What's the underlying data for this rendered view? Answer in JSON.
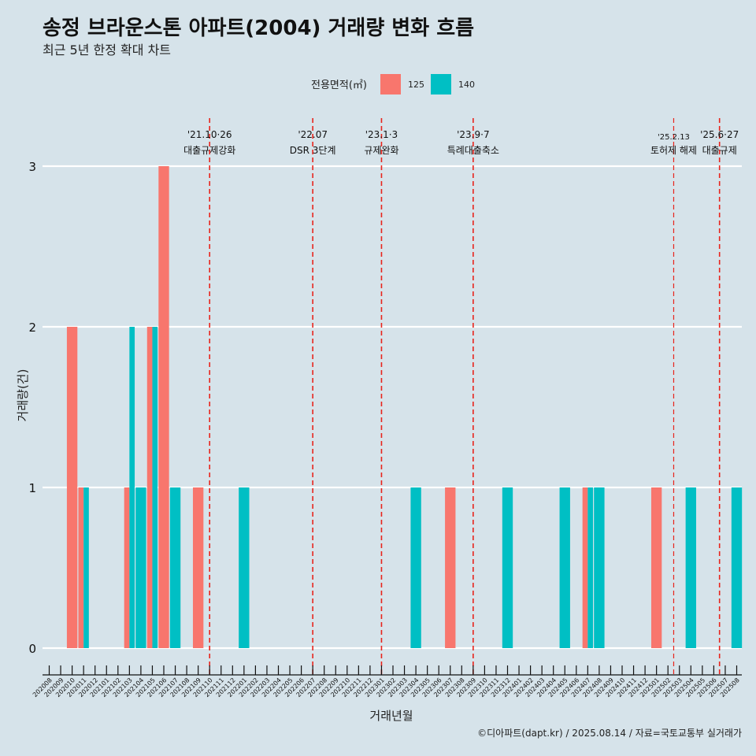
{
  "title": "송정 브라운스톤 아파트(2004) 거래량 변화 흐름",
  "subtitle": "최근 5년 한정 확대 차트",
  "caption": "©디아파트(dapt.kr) / 2025.08.14 / 자료=국토교통부 실거래가",
  "colors": {
    "125": "#f8766d",
    "140": "#00bfc4",
    "vline": "#e8241c",
    "background": "#d6e3ea",
    "grid": "#ffffff"
  },
  "chart_data": {
    "type": "bar",
    "xlabel": "거래년월",
    "ylabel": "거래량(건)",
    "ylim": [
      0,
      3
    ],
    "yticks": [
      0,
      1,
      2,
      3
    ],
    "legend": {
      "title": "전용면적(㎡)",
      "position": "top",
      "entries": [
        "125",
        "140"
      ]
    },
    "categories": [
      "202008",
      "202009",
      "202010",
      "202011",
      "202012",
      "202101",
      "202102",
      "202103",
      "202104",
      "202105",
      "202106",
      "202107",
      "202108",
      "202109",
      "202110",
      "202111",
      "202112",
      "202201",
      "202202",
      "202203",
      "202204",
      "202205",
      "202206",
      "202207",
      "202208",
      "202209",
      "202210",
      "202211",
      "202212",
      "202301",
      "202302",
      "202303",
      "202304",
      "202305",
      "202306",
      "202307",
      "202308",
      "202309",
      "202310",
      "202311",
      "202312",
      "202401",
      "202402",
      "202403",
      "202404",
      "202405",
      "202406",
      "202407",
      "202408",
      "202409",
      "202410",
      "202411",
      "202412",
      "202501",
      "202502",
      "202503",
      "202504",
      "202505",
      "202506",
      "202507",
      "202508"
    ],
    "series": [
      {
        "name": "125",
        "values": [
          0,
          0,
          2,
          1,
          0,
          0,
          0,
          1,
          0,
          2,
          3,
          0,
          0,
          1,
          0,
          0,
          0,
          0,
          0,
          0,
          0,
          0,
          0,
          0,
          0,
          0,
          0,
          0,
          0,
          0,
          0,
          0,
          0,
          0,
          0,
          1,
          0,
          0,
          0,
          0,
          0,
          0,
          0,
          0,
          0,
          0,
          0,
          1,
          0,
          0,
          0,
          0,
          0,
          1,
          0,
          0,
          0,
          0,
          0,
          0,
          0
        ]
      },
      {
        "name": "140",
        "values": [
          0,
          0,
          0,
          1,
          0,
          0,
          0,
          2,
          1,
          2,
          0,
          1,
          0,
          0,
          0,
          0,
          0,
          1,
          0,
          0,
          0,
          0,
          0,
          0,
          0,
          0,
          0,
          0,
          0,
          0,
          0,
          0,
          1,
          0,
          0,
          0,
          0,
          0,
          0,
          0,
          1,
          0,
          0,
          0,
          0,
          1,
          0,
          1,
          1,
          0,
          0,
          0,
          0,
          0,
          0,
          0,
          1,
          0,
          0,
          0,
          1
        ]
      }
    ],
    "annotations": [
      {
        "position": 14.0,
        "line1": "'21.10·26",
        "line2": "대출규제강화",
        "small": false
      },
      {
        "position": 23.0,
        "line1": "'22.07",
        "line2": "DSR 3단계",
        "small": false
      },
      {
        "position": 29.0,
        "line1": "'23.1·3",
        "line2": "규제완화",
        "small": false
      },
      {
        "position": 37.0,
        "line1": "'23.9·7",
        "line2": "특례대출축소",
        "small": false
      },
      {
        "position": 54.5,
        "line1": "'25.2.13",
        "line2": "토허제 해제",
        "small": true
      },
      {
        "position": 58.5,
        "line1": "'25.6·27",
        "line2": "대출규제",
        "small": false
      }
    ]
  }
}
